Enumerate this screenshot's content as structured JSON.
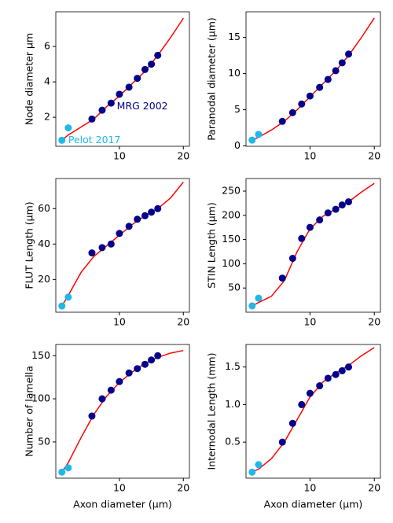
{
  "chart_data": [
    {
      "type": "scatter",
      "ylabel": "Node diameter µm",
      "xlim": [
        0.05,
        20.95
      ],
      "xticks": [
        10,
        20
      ],
      "ylim": [
        0.36,
        7.96
      ],
      "yticks": [
        2,
        4,
        6
      ],
      "annotations": [
        {
          "text": "MRG 2002",
          "x": 9.6,
          "y": 2.6,
          "color": "#00008b"
        },
        {
          "text": "Pelot 2017",
          "x": 2.0,
          "y": 0.7,
          "color": "#1fb8e8"
        }
      ],
      "series": [
        {
          "style": "line",
          "color": "#ff0000",
          "x": [
            1,
            2,
            4,
            6,
            8,
            10,
            12,
            14,
            16,
            18,
            20
          ],
          "values": [
            0.7,
            1.0,
            1.45,
            1.9,
            2.6,
            3.2,
            3.9,
            4.6,
            5.5,
            6.5,
            7.6
          ]
        },
        {
          "style": "marker",
          "color": "#00008b",
          "x": [
            5.7,
            7.3,
            8.7,
            10.0,
            11.5,
            12.8,
            14.0,
            15.0,
            16.0
          ],
          "values": [
            1.9,
            2.4,
            2.8,
            3.3,
            3.7,
            4.2,
            4.7,
            5.0,
            5.5
          ]
        },
        {
          "style": "marker",
          "color": "#1fb8e8",
          "x": [
            1,
            2
          ],
          "values": [
            0.7,
            1.4
          ]
        }
      ]
    },
    {
      "type": "scatter",
      "ylabel": "Paranodal diameter (µm)",
      "xlim": [
        0.05,
        20.95
      ],
      "xticks": [
        10,
        20
      ],
      "ylim": [
        -0.05,
        18.55
      ],
      "yticks": [
        0,
        5,
        10,
        15
      ],
      "series": [
        {
          "style": "line",
          "color": "#ff0000",
          "x": [
            1,
            2,
            4,
            6,
            8,
            10,
            12,
            14,
            16,
            18,
            20
          ],
          "values": [
            0.8,
            1.2,
            2.2,
            3.4,
            5.0,
            6.8,
            8.6,
            10.4,
            12.5,
            15.0,
            17.7
          ]
        },
        {
          "style": "marker",
          "color": "#00008b",
          "x": [
            5.7,
            7.3,
            8.7,
            10.0,
            11.5,
            12.8,
            14.0,
            15.0,
            16.0
          ],
          "values": [
            3.4,
            4.6,
            5.8,
            6.9,
            8.1,
            9.2,
            10.4,
            11.5,
            12.7
          ]
        },
        {
          "style": "marker",
          "color": "#1fb8e8",
          "x": [
            1,
            2
          ],
          "values": [
            0.8,
            1.6
          ]
        }
      ]
    },
    {
      "type": "scatter",
      "ylabel": "FLUT Length (µm)",
      "xlim": [
        0.05,
        20.95
      ],
      "xticks": [
        10,
        20
      ],
      "ylim": [
        1.5,
        77
      ],
      "yticks": [
        20,
        40,
        60
      ],
      "series": [
        {
          "style": "line",
          "color": "#ff0000",
          "x": [
            1,
            2,
            4,
            6,
            8,
            10,
            12,
            14,
            16,
            18,
            20
          ],
          "values": [
            5,
            11,
            24,
            33,
            39,
            45,
            51,
            56,
            60,
            66,
            75
          ]
        },
        {
          "style": "marker",
          "color": "#00008b",
          "x": [
            5.7,
            7.3,
            8.7,
            10.0,
            11.5,
            12.8,
            14.0,
            15.0,
            16.0
          ],
          "values": [
            35,
            38,
            40,
            46,
            50,
            54,
            56,
            58,
            60
          ]
        },
        {
          "style": "marker",
          "color": "#1fb8e8",
          "x": [
            1,
            2
          ],
          "values": [
            5,
            10
          ]
        }
      ]
    },
    {
      "type": "scatter",
      "ylabel": "STIN Length (µm)",
      "xlim": [
        0.05,
        20.95
      ],
      "xticks": [
        10,
        20
      ],
      "ylim": [
        0,
        276
      ],
      "yticks": [
        50,
        100,
        150,
        200,
        250
      ],
      "series": [
        {
          "style": "line",
          "color": "#ff0000",
          "x": [
            1,
            2,
            4,
            6,
            8,
            10,
            12,
            14,
            16,
            18,
            20
          ],
          "values": [
            13,
            20,
            33,
            65,
            125,
            172,
            198,
            213,
            228,
            248,
            266
          ]
        },
        {
          "style": "marker",
          "color": "#00008b",
          "x": [
            5.7,
            7.3,
            8.7,
            10.0,
            11.5,
            12.8,
            14.0,
            15.0,
            16.0
          ],
          "values": [
            70.5,
            111.2,
            152.2,
            175.2,
            190.5,
            205.0,
            212.5,
            221.5,
            228.0
          ]
        },
        {
          "style": "marker",
          "color": "#1fb8e8",
          "x": [
            1,
            2
          ],
          "values": [
            13,
            29
          ]
        }
      ]
    },
    {
      "type": "scatter",
      "ylabel": "Number of lamella",
      "xlabel": "Axon diameter (µm)",
      "xlim": [
        0.05,
        20.95
      ],
      "xticks": [
        10,
        20
      ],
      "ylim": [
        8,
        163
      ],
      "yticks": [
        50,
        100,
        150
      ],
      "series": [
        {
          "style": "line",
          "color": "#ff0000",
          "x": [
            1,
            2,
            4,
            6,
            8,
            10,
            12,
            14,
            16,
            18,
            20
          ],
          "values": [
            15,
            26,
            55,
            82,
            103,
            119,
            131,
            141,
            148,
            153,
            156
          ]
        },
        {
          "style": "marker",
          "color": "#00008b",
          "x": [
            5.7,
            7.3,
            8.7,
            10.0,
            11.5,
            12.8,
            14.0,
            15.0,
            16.0
          ],
          "values": [
            80,
            100,
            110,
            120,
            130,
            135,
            140,
            145,
            150
          ]
        },
        {
          "style": "marker",
          "color": "#1fb8e8",
          "x": [
            1,
            2
          ],
          "values": [
            15,
            20
          ]
        }
      ]
    },
    {
      "type": "scatter",
      "ylabel": "Internodal Length (mm)",
      "xlabel": "Axon diameter (µm)",
      "xlim": [
        0.05,
        20.95
      ],
      "xticks": [
        10,
        20
      ],
      "ylim": [
        0.02,
        1.8
      ],
      "yticks": [
        0.5,
        {
          "value": 1,
          "label": "1.0"
        },
        1.5
      ],
      "series": [
        {
          "style": "line",
          "color": "#ff0000",
          "x": [
            1,
            2,
            4,
            6,
            8,
            10,
            12,
            14,
            16,
            18,
            20
          ],
          "values": [
            0.1,
            0.14,
            0.28,
            0.5,
            0.8,
            1.1,
            1.3,
            1.42,
            1.52,
            1.65,
            1.76
          ]
        },
        {
          "style": "marker",
          "color": "#00008b",
          "x": [
            5.7,
            7.3,
            8.7,
            10.0,
            11.5,
            12.8,
            14.0,
            15.0,
            16.0
          ],
          "values": [
            0.5,
            0.75,
            1.0,
            1.15,
            1.25,
            1.35,
            1.4,
            1.45,
            1.5
          ]
        },
        {
          "style": "marker",
          "color": "#1fb8e8",
          "x": [
            1,
            2
          ],
          "values": [
            0.1,
            0.2
          ]
        }
      ]
    }
  ]
}
